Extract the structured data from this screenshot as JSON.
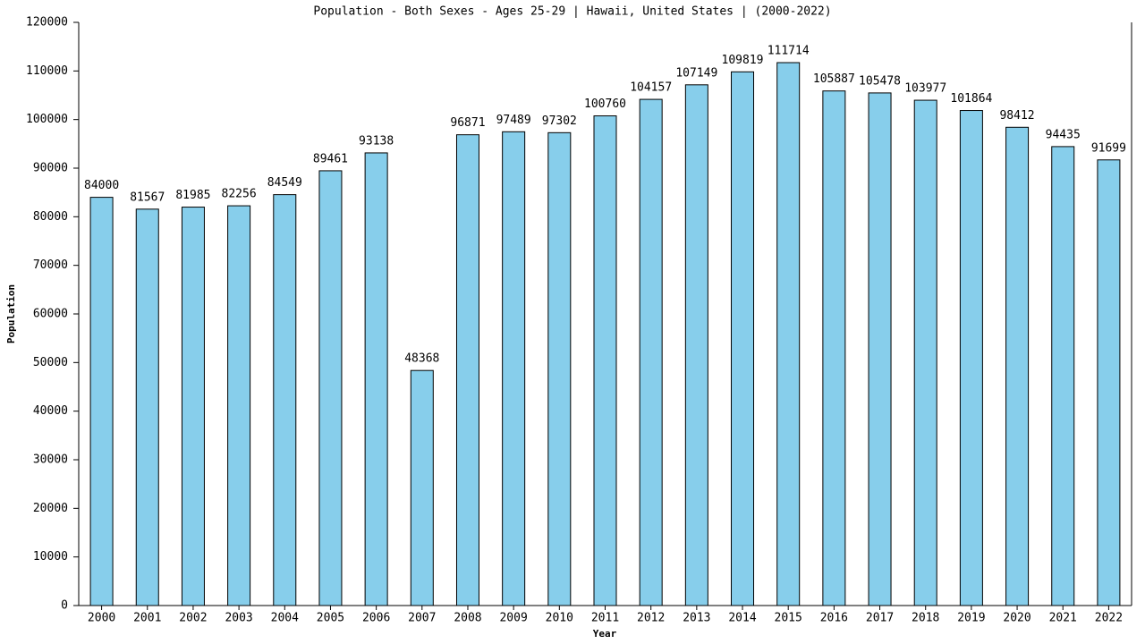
{
  "chart_data": {
    "type": "bar",
    "title": "Population - Both Sexes - Ages 25-29 | Hawaii, United States |  (2000-2022)",
    "x_label": "Year",
    "y_label": "Population",
    "categories": [
      "2000",
      "2001",
      "2002",
      "2003",
      "2004",
      "2005",
      "2006",
      "2007",
      "2008",
      "2009",
      "2010",
      "2011",
      "2012",
      "2013",
      "2014",
      "2015",
      "2016",
      "2017",
      "2018",
      "2019",
      "2020",
      "2021",
      "2022"
    ],
    "values": [
      84000,
      81567,
      81985,
      82256,
      84549,
      89461,
      93138,
      48368,
      96871,
      97489,
      97302,
      100760,
      104157,
      107149,
      109819,
      111714,
      105887,
      105478,
      103977,
      101864,
      98412,
      94435,
      91699
    ],
    "color": "#87ceeb",
    "ylim": [
      0,
      120000
    ],
    "yticks": [
      0,
      10000,
      20000,
      30000,
      40000,
      50000,
      60000,
      70000,
      80000,
      90000,
      100000,
      110000,
      120000
    ],
    "grid": false
  }
}
